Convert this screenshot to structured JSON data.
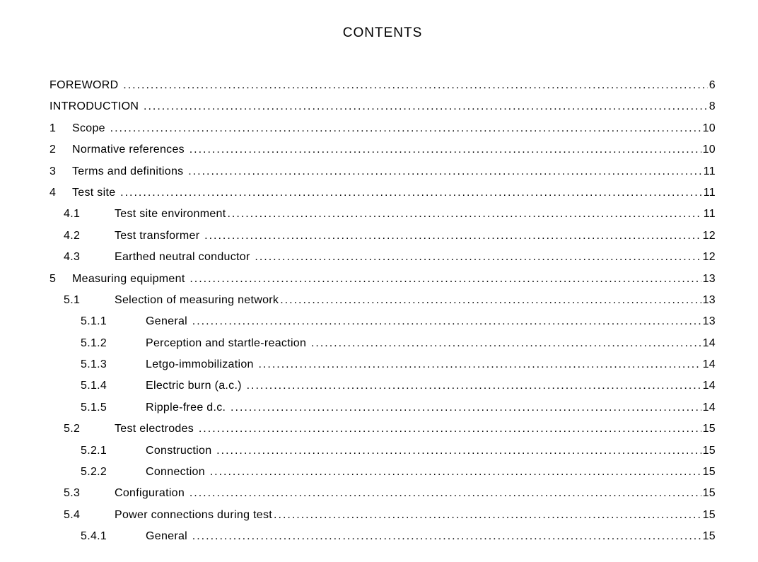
{
  "title": "CONTENTS",
  "font": {
    "family": "Arial, Helvetica, sans-serif",
    "title_size_pt": 14,
    "body_size_pt": 12,
    "color": "#000000",
    "background": "#ffffff"
  },
  "toc": [
    {
      "indent": 0,
      "num": "",
      "label": "FOREWORD ",
      "page": "6"
    },
    {
      "indent": 0,
      "num": "",
      "label": "INTRODUCTION ",
      "page": "8"
    },
    {
      "indent": 1,
      "num": "1",
      "label": "Scope ",
      "page": "10"
    },
    {
      "indent": 1,
      "num": "2",
      "label": "Normative references ",
      "page": "10"
    },
    {
      "indent": 1,
      "num": "3",
      "label": "Terms and definitions ",
      "page": "11"
    },
    {
      "indent": 1,
      "num": "4",
      "label": "Test site ",
      "page": "11"
    },
    {
      "indent": 2,
      "num": "4.1",
      "label": "Test site environment",
      "page": "11"
    },
    {
      "indent": 2,
      "num": "4.2",
      "label": "Test transformer ",
      "page": "12"
    },
    {
      "indent": 2,
      "num": "4.3",
      "label": "Earthed neutral conductor ",
      "page": "12"
    },
    {
      "indent": 1,
      "num": "5",
      "label": "Measuring equipment ",
      "page": "13"
    },
    {
      "indent": 2,
      "num": "5.1",
      "label": "Selection of measuring network",
      "page": "13"
    },
    {
      "indent": 3,
      "num": "5.1.1",
      "label": "General ",
      "page": "13"
    },
    {
      "indent": 3,
      "num": "5.1.2",
      "label": "Perception and startle-reaction ",
      "page": "14"
    },
    {
      "indent": 3,
      "num": "5.1.3",
      "label": "Letgo-immobilization ",
      "page": "14"
    },
    {
      "indent": 3,
      "num": "5.1.4",
      "label": "Electric burn (a.c.) ",
      "page": "14"
    },
    {
      "indent": 3,
      "num": "5.1.5",
      "label": "Ripple-free d.c. ",
      "page": "14"
    },
    {
      "indent": 2,
      "num": "5.2",
      "label": "Test electrodes ",
      "page": "15"
    },
    {
      "indent": 3,
      "num": "5.2.1",
      "label": "Construction ",
      "page": "15"
    },
    {
      "indent": 3,
      "num": "5.2.2",
      "label": "Connection ",
      "page": "15"
    },
    {
      "indent": 2,
      "num": "5.3",
      "label": "Configuration ",
      "page": "15"
    },
    {
      "indent": 2,
      "num": "5.4",
      "label": "Power connections during test",
      "page": "15"
    },
    {
      "indent": 3,
      "num": "5.4.1",
      "label": "General ",
      "page": "15"
    }
  ]
}
